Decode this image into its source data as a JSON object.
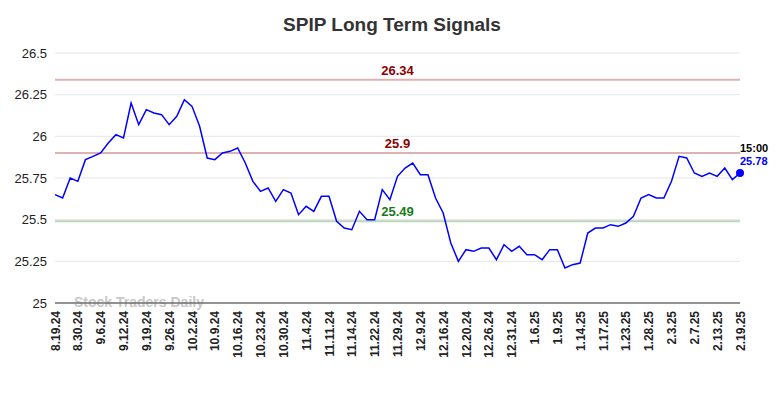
{
  "chart_data": {
    "type": "line",
    "title": "SPIP Long Term Signals",
    "watermark": "Stock Traders Daily",
    "last_label": "15:00",
    "categories": [
      "8.19.24",
      null,
      null,
      "8.30.24",
      null,
      null,
      "9.6.24",
      null,
      null,
      "9.12.24",
      null,
      null,
      "9.19.24",
      null,
      null,
      "9.26.24",
      null,
      null,
      "10.2.24",
      null,
      null,
      "10.9.24",
      null,
      null,
      "10.16.24",
      null,
      null,
      "10.23.24",
      null,
      null,
      "10.30.24",
      null,
      null,
      "11.4.24",
      null,
      null,
      "11.11.24",
      null,
      null,
      "11.14.24",
      null,
      null,
      "11.22.24",
      null,
      null,
      "11.29.24",
      null,
      null,
      "12.9.24",
      null,
      null,
      "12.16.24",
      null,
      null,
      "12.20.24",
      null,
      null,
      "12.26.24",
      null,
      null,
      "12.31.24",
      null,
      null,
      "1.6.25",
      null,
      null,
      "1.9.25",
      null,
      null,
      "1.14.25",
      null,
      null,
      "1.17.25",
      null,
      null,
      "1.23.25",
      null,
      null,
      "1.28.25",
      null,
      null,
      "2.3.25",
      null,
      null,
      "2.7.25",
      null,
      null,
      "2.13.25",
      null,
      null,
      "2.19.25"
    ],
    "values": [
      25.65,
      25.63,
      25.75,
      25.73,
      25.86,
      25.88,
      25.9,
      25.96,
      26.01,
      25.99,
      26.2,
      26.07,
      26.16,
      26.14,
      26.13,
      26.07,
      26.12,
      26.22,
      26.18,
      26.06,
      25.87,
      25.86,
      25.9,
      25.91,
      25.93,
      25.84,
      25.73,
      25.67,
      25.69,
      25.61,
      25.68,
      25.66,
      25.53,
      25.58,
      25.55,
      25.64,
      25.64,
      25.49,
      25.45,
      25.44,
      25.55,
      25.5,
      25.5,
      25.68,
      25.62,
      25.76,
      25.81,
      25.84,
      25.77,
      25.77,
      25.63,
      25.54,
      25.36,
      25.25,
      25.32,
      25.31,
      25.33,
      25.33,
      25.26,
      25.35,
      25.31,
      25.34,
      25.29,
      25.29,
      25.26,
      25.32,
      25.32,
      25.21,
      25.23,
      25.24,
      25.42,
      25.45,
      25.45,
      25.47,
      25.46,
      25.48,
      25.52,
      25.63,
      25.65,
      25.63,
      25.63,
      25.73,
      25.88,
      25.87,
      25.78,
      25.76,
      25.78,
      25.76,
      25.81,
      25.74,
      25.78
    ],
    "color": "#0000ff",
    "levels": [
      {
        "value": 26.34,
        "color": "#8b0000"
      },
      {
        "value": 25.9,
        "color": "#8b0000"
      },
      {
        "value": 25.49,
        "color": "#1a7a1a"
      }
    ],
    "ylim": [
      25,
      26.5
    ],
    "yticks": [
      25,
      25.25,
      25.5,
      25.75,
      26,
      26.25,
      26.5
    ],
    "grid": true
  }
}
